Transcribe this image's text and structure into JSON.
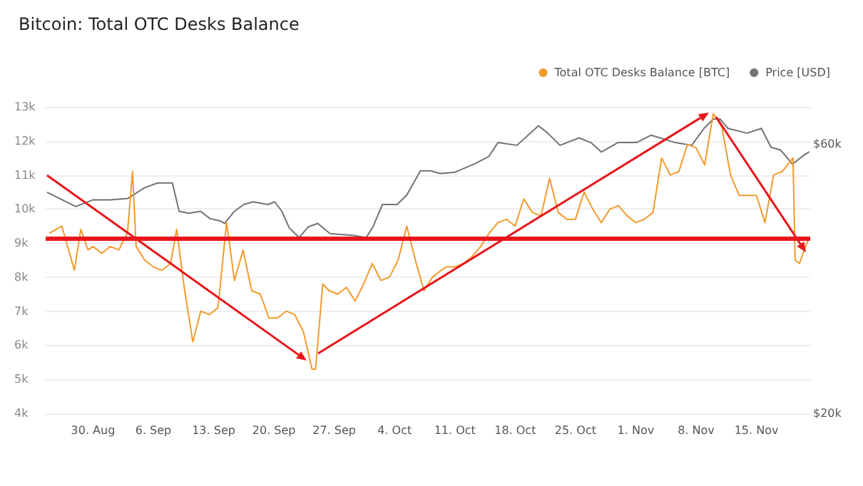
{
  "chart_data": {
    "type": "line",
    "title": "Bitcoin: Total OTC Desks Balance",
    "legend": "top right",
    "grid": "y",
    "marker": "none",
    "line_style": "solid",
    "xlim": [
      "--08-24T12:00",
      "--11-21T06:00"
    ],
    "xticks": [
      {
        "value": "--08-30",
        "label": "30. Aug"
      },
      {
        "value": "--09-06",
        "label": "6. Sep"
      },
      {
        "value": "--09-13",
        "label": "13. Sep"
      },
      {
        "value": "--09-20",
        "label": "20. Sep"
      },
      {
        "value": "--09-27",
        "label": "27. Sep"
      },
      {
        "value": "--10-04",
        "label": "4. Oct"
      },
      {
        "value": "--10-11",
        "label": "11. Oct"
      },
      {
        "value": "--10-18",
        "label": "18. Oct"
      },
      {
        "value": "--10-25",
        "label": "25. Oct"
      },
      {
        "value": "--11-01",
        "label": "1. Nov"
      },
      {
        "value": "--11-08",
        "label": "8. Nov"
      },
      {
        "value": "--11-15",
        "label": "15. Nov"
      }
    ],
    "ylim": [
      4000,
      13000
    ],
    "yticks": [
      {
        "value": 4000,
        "label": "4k"
      },
      {
        "value": 5000,
        "label": "5k"
      },
      {
        "value": 6000,
        "label": "6k"
      },
      {
        "value": 7000,
        "label": "7k"
      },
      {
        "value": 8000,
        "label": "8k"
      },
      {
        "value": 9000,
        "label": "9k"
      },
      {
        "value": 10000,
        "label": "10k"
      },
      {
        "value": 11000,
        "label": "11k"
      },
      {
        "value": 12000,
        "label": "12k"
      },
      {
        "value": 13000,
        "label": "13k"
      }
    ],
    "y2lim": [
      20000,
      65500
    ],
    "y2ticks": [
      {
        "value": 20000,
        "label": "$20k"
      },
      {
        "value": 60000,
        "label": "$60k"
      }
    ],
    "ref_lines": [
      {
        "axis": "y",
        "value": 9150,
        "color": "#e8161b"
      }
    ],
    "series": [
      {
        "name": "Total OTC Desks Balance [BTC]",
        "color": "#f39a2c",
        "x": [
          "--08-25",
          "--08-26T09:00",
          "--08-27T20:00",
          "--08-28T14:00",
          "--08-29T10:00",
          "--08-30",
          "--08-31",
          "--09-01",
          "--09-02",
          "--09-03",
          "--09-03T14:00",
          "--09-04",
          "--09-05",
          "--09-06",
          "--09-07",
          "--09-08",
          "--09-08T17:00",
          "--09-09T14:00",
          "--09-10T14:00",
          "--09-11T12:00",
          "--09-12T12:00",
          "--09-13T12:00",
          "--09-14T12:00",
          "--09-15T10:00",
          "--09-16T10:00",
          "--09-17T10:00",
          "--09-18T10:00",
          "--09-19T10:00",
          "--09-20T10:00",
          "--09-21T10:00",
          "--09-22T10:00",
          "--09-23T10:00",
          "--09-24T10:00",
          "--09-24T20:00",
          "--09-25T16:00",
          "--09-26T10:00",
          "--09-27T10:00",
          "--09-28T10:00",
          "--09-29T10:00",
          "--09-30T10:00",
          "--10-01T10:00",
          "--10-02T10:00",
          "--10-03T10:00",
          "--10-04T10:00",
          "--10-05T10:00",
          "--10-06T10:00",
          "--10-07T10:00",
          "--10-08T10:00",
          "--10-09T10:00",
          "--10-10",
          "--10-11",
          "--10-12",
          "--10-13",
          "--10-14",
          "--10-15",
          "--10-16",
          "--10-17",
          "--10-18",
          "--10-19",
          "--10-20",
          "--10-21",
          "--10-22",
          "--10-23",
          "--10-24",
          "--10-25",
          "--10-26",
          "--10-27",
          "--10-28",
          "--10-29",
          "--10-30",
          "--10-31",
          "--11-01",
          "--11-02",
          "--11-03",
          "--11-04",
          "--11-05",
          "--11-06",
          "--11-07",
          "--11-08",
          "--11-09",
          "--11-10",
          "--11-11",
          "--11-12",
          "--11-13",
          "--11-14",
          "--11-15",
          "--11-16",
          "--11-17",
          "--11-18",
          "--11-19T06:00",
          "--11-19T12:00",
          "--11-20",
          "--11-21"
        ],
        "values": [
          9300,
          9500,
          8200,
          9400,
          8800,
          8900,
          8700,
          8900,
          8800,
          9300,
          11100,
          8900,
          8500,
          8300,
          8200,
          8400,
          9400,
          7700,
          6100,
          7000,
          6900,
          7100,
          9600,
          7900,
          8800,
          7600,
          7500,
          6800,
          6800,
          7000,
          6900,
          6400,
          5300,
          5300,
          7800,
          7600,
          7500,
          7700,
          7300,
          7800,
          8400,
          7900,
          8000,
          8500,
          9500,
          8500,
          7600,
          8000,
          8200,
          8300,
          8300,
          8400,
          8600,
          8900,
          9300,
          9600,
          9700,
          9500,
          10300,
          9900,
          9800,
          10900,
          9900,
          9700,
          9700,
          10500,
          10000,
          9600,
          10000,
          10100,
          9800,
          9600,
          9700,
          9900,
          11500,
          11000,
          11100,
          11900,
          11800,
          11300,
          12800,
          12400,
          11000,
          10400,
          10400,
          10400,
          9600,
          11000,
          11100,
          11500,
          8500,
          8400,
          9100
        ]
      },
      {
        "name": "Price [USD]",
        "color": "#737373",
        "axis": "y2",
        "x": [
          "--08-24T17:00",
          "--08-26T10:00",
          "--08-28",
          "--08-30",
          "--09-01",
          "--09-03",
          "--09-05",
          "--09-06T12:00",
          "--09-08T05:00",
          "--09-09",
          "--09-10T02:00",
          "--09-11T12:00",
          "--09-12T14:00",
          "--09-13T17:00",
          "--09-14T07:00",
          "--09-15T10:00",
          "--09-16T12:00",
          "--09-17T14:00",
          "--09-19T07:00",
          "--09-20T02:00",
          "--09-20T22:00",
          "--09-21T19:00",
          "--09-22T22:00",
          "--09-24",
          "--09-25T02:00",
          "--09-26T12:00",
          "--09-29T07:00",
          "--09-30T17:00",
          "--10-01T12:00",
          "--10-02T14:00",
          "--10-04T07:00",
          "--10-05T10:00",
          "--10-07",
          "--10-08T05:00",
          "--10-09T07:00",
          "--10-11",
          "--10-13T05:00",
          "--10-14T22:00",
          "--10-16",
          "--10-18T05:00",
          "--10-20T17:00",
          "--10-21T19:00",
          "--10-23T05:00",
          "--10-25T10:00",
          "--10-26T19:00",
          "--10-28",
          "--10-29T22:00",
          "--11-01T02:00",
          "--11-02T19:00",
          "--11-05T14:00",
          "--11-07T12:00",
          "--11-08T22:00",
          "--11-10",
          "--11-10T19:00",
          "--11-11T17:00",
          "--11-13T22:00",
          "--11-15T14:00",
          "--11-16T17:00",
          "--11-17T19:00",
          "--11-19T05:00",
          "--11-20T14:00",
          "--11-21T02:00"
        ],
        "values": [
          52800,
          51700,
          50700,
          51700,
          51700,
          51900,
          53500,
          54200,
          54200,
          50000,
          49700,
          50000,
          48900,
          48600,
          48200,
          50000,
          51000,
          51400,
          51000,
          51400,
          50000,
          47500,
          46100,
          47700,
          48200,
          46700,
          46400,
          46100,
          47700,
          51000,
          51000,
          52400,
          56000,
          56000,
          55600,
          55800,
          57000,
          58100,
          60200,
          59800,
          62700,
          61600,
          59800,
          60900,
          60200,
          58800,
          60200,
          60200,
          61300,
          60200,
          59800,
          62300,
          63700,
          63700,
          62300,
          61600,
          62300,
          59500,
          59100,
          57000,
          58400,
          58800
        ]
      }
    ]
  }
}
